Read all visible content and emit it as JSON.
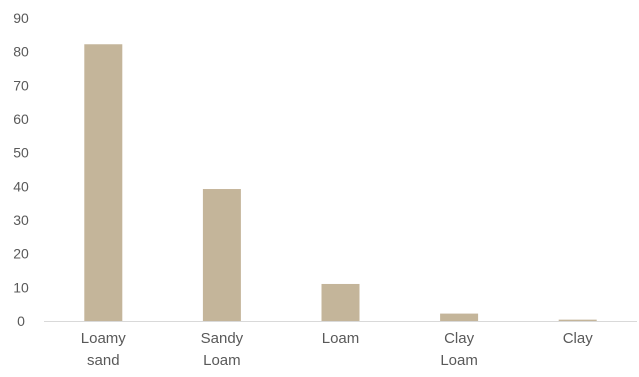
{
  "chart_data": {
    "type": "bar",
    "categories": [
      [
        "Loamy",
        "sand"
      ],
      [
        "Sandy",
        "Loam"
      ],
      [
        "Loam"
      ],
      [
        "Clay",
        "Loam"
      ],
      [
        "Clay"
      ]
    ],
    "values": [
      82.2,
      39.2,
      11.0,
      2.2,
      0.4
    ],
    "ylim": [
      0,
      90
    ],
    "yticks": [
      0,
      10,
      20,
      30,
      40,
      50,
      60,
      70,
      80,
      90
    ],
    "grid": false,
    "bar_color": "#c4b59a",
    "axis_color": "#d9d9d9",
    "text_color": "#595959",
    "title": "",
    "xlabel": "",
    "ylabel": ""
  }
}
